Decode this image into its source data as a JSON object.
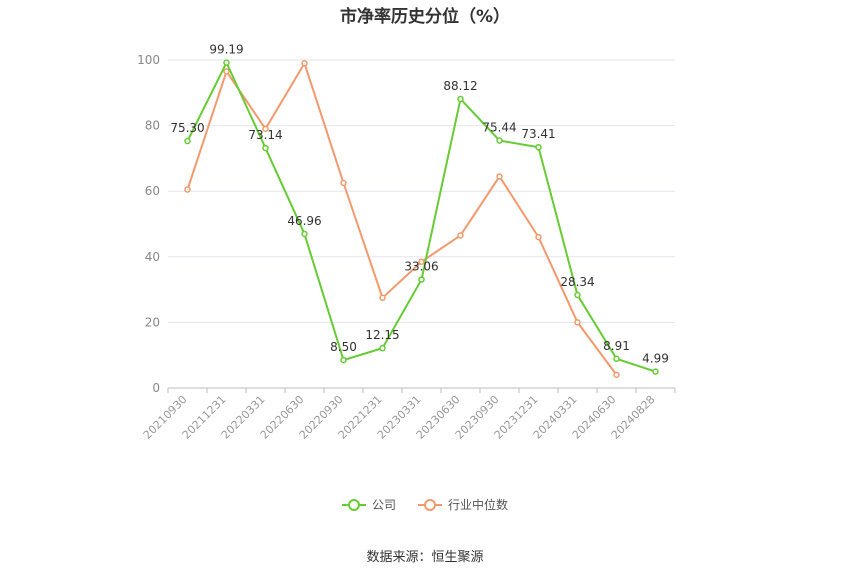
{
  "chart_data": {
    "type": "line",
    "title": "市净率历史分位（%）",
    "categories": [
      "20210930",
      "20211231",
      "20220331",
      "20220630",
      "20220930",
      "20221231",
      "20230331",
      "20230630",
      "20230930",
      "20231231",
      "20240331",
      "20240630",
      "20240828"
    ],
    "series": [
      {
        "name": "公司",
        "color": "#66cc33",
        "values": [
          75.3,
          99.19,
          73.14,
          46.96,
          8.5,
          12.15,
          33.06,
          88.12,
          75.44,
          73.41,
          28.34,
          8.91,
          4.99
        ],
        "labels": [
          "75.30",
          "99.19",
          "73.14",
          "46.96",
          "8.50",
          "12.15",
          "33.06",
          "88.12",
          "75.44",
          "73.41",
          "28.34",
          "8.91",
          "4.99"
        ]
      },
      {
        "name": "行业中位数",
        "color": "#f4996c",
        "values": [
          60.5,
          96.5,
          79,
          99,
          62.5,
          27.5,
          38.5,
          46.5,
          64.5,
          46,
          20,
          4,
          null
        ]
      }
    ],
    "yticks": [
      0,
      20,
      40,
      60,
      80,
      100
    ],
    "ylim": [
      0,
      100
    ],
    "grid": true,
    "legend_position": "bottom"
  },
  "source_note": "数据来源：恒生聚源"
}
